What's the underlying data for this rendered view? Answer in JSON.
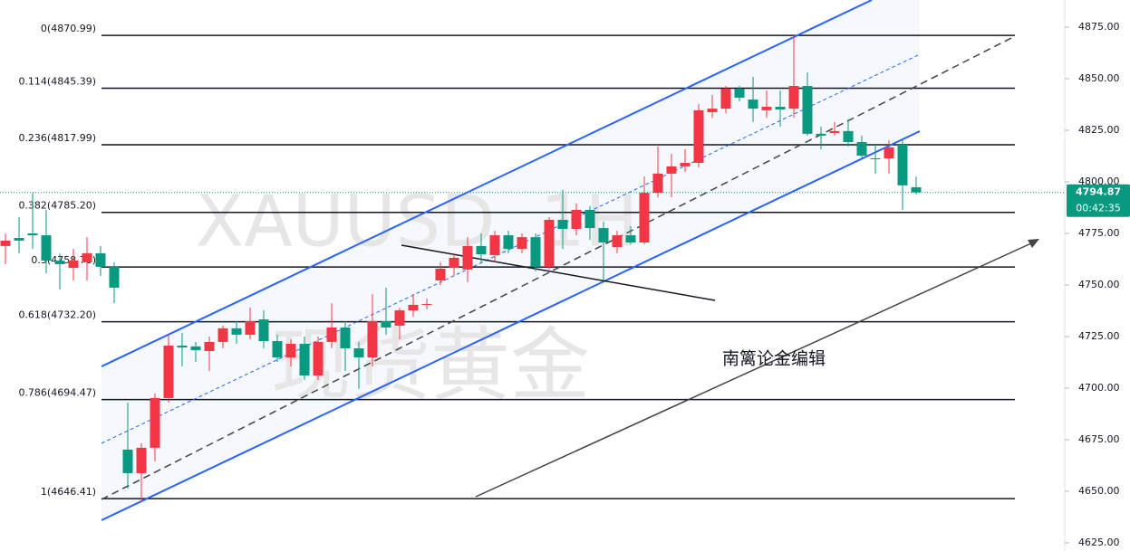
{
  "chart_data": {
    "type": "candlestick",
    "watermark_symbol": "XAUUSD, 1H",
    "watermark_text": "现货黄金",
    "annotation": "南篱论金编辑",
    "up_color": "#f23645",
    "down_color": "#089981",
    "open": [
      4768.9,
      4772.8,
      4775.0,
      4774.1,
      4761.8,
      4758.3,
      4761.0,
      4765.4,
      4758.8,
      4670.2,
      4658.8,
      4671.1,
      4695.2,
      4720.6,
      4720.2,
      4718.0,
      4722.4,
      4729.0,
      4725.9,
      4733.3,
      4722.8,
      4714.9,
      4721.5,
      4706.1,
      4722.4,
      4729.4,
      4719.3,
      4714.9,
      4732.5,
      4730.3,
      4737.7,
      4740.4,
      4752.2,
      4758.3,
      4757.5,
      4768.9,
      4764.5,
      4774.1,
      4767.5,
      4773.2,
      4758.8,
      4781.6,
      4777.2,
      4786.4,
      4777.6,
      4768.4,
      4774.1,
      4770.6,
      4794.7,
      4804.0,
      4807.5,
      4809.2,
      4833.8,
      4835.5,
      4845.2,
      4839.9,
      4834.7,
      4836.4,
      4835.5,
      4846.5,
      4823.3,
      4823.7,
      4824.6,
      4819.3,
      4811.4,
      4811.4,
      4818.0,
      4797.4
    ],
    "high": [
      4775.0,
      4782.9,
      4794.7,
      4786.4,
      4765.4,
      4767.5,
      4773.2,
      4768.9,
      4761.0,
      4693.0,
      4673.3,
      4697.4,
      4725.9,
      4726.8,
      4722.4,
      4725.0,
      4730.3,
      4732.5,
      4739.0,
      4737.7,
      4725.9,
      4723.7,
      4725.0,
      4725.0,
      4741.2,
      4732.5,
      4722.4,
      4745.6,
      4748.7,
      4739.0,
      4745.6,
      4743.4,
      4761.0,
      4765.4,
      4773.2,
      4775.0,
      4776.3,
      4776.3,
      4775.0,
      4775.0,
      4782.9,
      4796.1,
      4789.5,
      4788.2,
      4780.7,
      4776.3,
      4778.5,
      4802.6,
      4817.1,
      4813.6,
      4815.8,
      4837.7,
      4842.1,
      4846.5,
      4846.5,
      4850.9,
      4844.3,
      4844.3,
      4871.5,
      4853.1,
      4826.8,
      4829.0,
      4830.3,
      4822.4,
      4818.0,
      4820.2,
      4820.2,
      4802.6
    ],
    "low": [
      4760.1,
      4765.4,
      4767.5,
      4755.7,
      4747.8,
      4752.2,
      4752.2,
      4754.4,
      4741.2,
      4651.3,
      4644.7,
      4664.5,
      4693.0,
      4710.5,
      4712.7,
      4708.3,
      4719.3,
      4721.5,
      4723.7,
      4719.3,
      4712.7,
      4710.5,
      4704.0,
      4704.0,
      4719.3,
      4708.3,
      4699.6,
      4710.5,
      4725.9,
      4723.7,
      4734.7,
      4738.2,
      4750.0,
      4754.4,
      4751.3,
      4761.0,
      4761.0,
      4765.4,
      4765.4,
      4756.6,
      4757.5,
      4767.5,
      4774.1,
      4771.9,
      4752.2,
      4765.4,
      4769.7,
      4769.7,
      4792.5,
      4792.5,
      4804.8,
      4807.0,
      4831.1,
      4833.3,
      4839.0,
      4829.0,
      4831.1,
      4826.8,
      4831.1,
      4822.4,
      4815.8,
      4822.4,
      4817.1,
      4811.4,
      4804.0,
      4804.0,
      4786.4,
      4793.9
    ],
    "close": [
      4771.5,
      4771.5,
      4774.1,
      4761.8,
      4760.1,
      4761.8,
      4765.4,
      4758.8,
      4748.7,
      4658.8,
      4671.1,
      4695.2,
      4720.6,
      4719.7,
      4718.4,
      4722.4,
      4729.0,
      4725.9,
      4732.5,
      4722.8,
      4714.9,
      4721.5,
      4706.1,
      4722.4,
      4729.4,
      4719.3,
      4714.9,
      4732.5,
      4729.4,
      4737.7,
      4740.4,
      4740.8,
      4757.9,
      4763.2,
      4768.9,
      4764.9,
      4774.1,
      4767.5,
      4773.2,
      4758.8,
      4781.6,
      4777.2,
      4786.4,
      4777.6,
      4770.6,
      4774.1,
      4770.6,
      4794.7,
      4804.0,
      4807.5,
      4809.2,
      4834.7,
      4835.5,
      4845.2,
      4840.8,
      4835.5,
      4836.4,
      4835.1,
      4846.5,
      4823.3,
      4822.4,
      4824.6,
      4819.3,
      4812.7,
      4811.0,
      4816.7,
      4798.3,
      4794.87
    ],
    "fib_levels": [
      {
        "value": 4870.99,
        "label": "0(4870.99)"
      },
      {
        "value": 4845.39,
        "label": "0.114(4845.39)"
      },
      {
        "value": 4817.99,
        "label": "0.236(4817.99)"
      },
      {
        "value": 4785.2,
        "label": "0.382(4785.20)"
      },
      {
        "value": 4758.7,
        "label": "0.5(4758.70)"
      },
      {
        "value": 4732.2,
        "label": "0.618(4732.20)"
      },
      {
        "value": 4694.47,
        "label": "0.786(4694.47)"
      },
      {
        "value": 4646.41,
        "label": "1(4646.41)"
      }
    ],
    "current_price": 4794.87,
    "countdown": "00:42:35",
    "ylim": [
      4621.05,
      4888.16
    ],
    "yticks": [
      {
        "value": 4625,
        "label": "4625.00"
      },
      {
        "value": 4650,
        "label": "4650.00"
      },
      {
        "value": 4675,
        "label": "4675.00"
      },
      {
        "value": 4700,
        "label": "4700.00"
      },
      {
        "value": 4725,
        "label": "4725.00"
      },
      {
        "value": 4750,
        "label": "4750.00"
      },
      {
        "value": 4775,
        "label": "4775.00"
      },
      {
        "value": 4800,
        "label": "4800.00"
      },
      {
        "value": 4825,
        "label": "4825.00"
      },
      {
        "value": 4850,
        "label": "4850.00"
      },
      {
        "value": 4875,
        "label": "4875.00"
      }
    ]
  }
}
